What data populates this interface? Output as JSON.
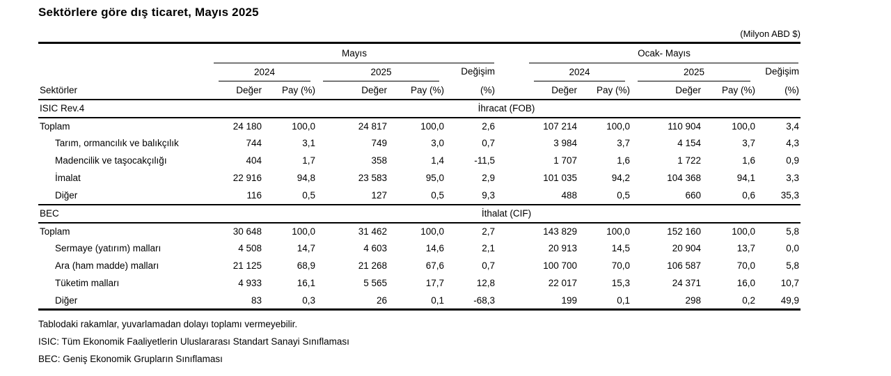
{
  "title": "Sektörlere göre dış ticaret, Mayıs 2025",
  "unit_label": "(Milyon ABD $)",
  "header": {
    "sector_col": "Sektörler",
    "groups": {
      "may": "Mayıs",
      "jan_may": "Ocak- Mayıs"
    },
    "years": [
      "2024",
      "2025"
    ],
    "value_label": "Değer",
    "share_label": "Pay (%)",
    "change_label": "Değişim",
    "change_unit": "(%)"
  },
  "sections": [
    {
      "left_label": "ISIC  Rev.4",
      "center_label": "İhracat (FOB)",
      "rows": [
        {
          "label": "Toplam",
          "bold": true,
          "indent": false,
          "values": [
            "24 180",
            "100,0",
            "24 817",
            "100,0",
            "2,6",
            "107 214",
            "100,0",
            "110 904",
            "100,0",
            "3,4"
          ]
        },
        {
          "label": "Tarım, ormancılık ve balıkçılık",
          "bold": false,
          "indent": true,
          "values": [
            "744",
            "3,1",
            "749",
            "3,0",
            "0,7",
            "3 984",
            "3,7",
            "4 154",
            "3,7",
            "4,3"
          ]
        },
        {
          "label": "Madencilik ve taşocakçılığı",
          "bold": false,
          "indent": true,
          "values": [
            "404",
            "1,7",
            "358",
            "1,4",
            "-11,5",
            "1 707",
            "1,6",
            "1 722",
            "1,6",
            "0,9"
          ]
        },
        {
          "label": "İmalat",
          "bold": false,
          "indent": true,
          "values": [
            "22 916",
            "94,8",
            "23 583",
            "95,0",
            "2,9",
            "101 035",
            "94,2",
            "104 368",
            "94,1",
            "3,3"
          ]
        },
        {
          "label": "Diğer",
          "bold": false,
          "indent": true,
          "values": [
            "116",
            "0,5",
            "127",
            "0,5",
            "9,3",
            "488",
            "0,5",
            "660",
            "0,6",
            "35,3"
          ]
        }
      ]
    },
    {
      "left_label": "BEC",
      "center_label": "İthalat (CIF)",
      "rows": [
        {
          "label": "Toplam",
          "bold": true,
          "indent": false,
          "values": [
            "30 648",
            "100,0",
            "31 462",
            "100,0",
            "2,7",
            "143 829",
            "100,0",
            "152 160",
            "100,0",
            "5,8"
          ]
        },
        {
          "label": "Sermaye (yatırım) malları",
          "bold": false,
          "indent": true,
          "values": [
            "4 508",
            "14,7",
            "4 603",
            "14,6",
            "2,1",
            "20 913",
            "14,5",
            "20 904",
            "13,7",
            "0,0"
          ]
        },
        {
          "label": "Ara (ham madde) malları",
          "bold": false,
          "indent": true,
          "values": [
            "21 125",
            "68,9",
            "21 268",
            "67,6",
            "0,7",
            "100 700",
            "70,0",
            "106 587",
            "70,0",
            "5,8"
          ]
        },
        {
          "label": "Tüketim malları",
          "bold": false,
          "indent": true,
          "values": [
            "4 933",
            "16,1",
            "5 565",
            "17,7",
            "12,8",
            "22 017",
            "15,3",
            "24 371",
            "16,0",
            "10,7"
          ]
        },
        {
          "label": "Diğer",
          "bold": false,
          "indent": true,
          "values": [
            "83",
            "0,3",
            "26",
            "0,1",
            "-68,3",
            "199",
            "0,1",
            "298",
            "0,2",
            "49,9"
          ]
        }
      ]
    }
  ],
  "footnotes": [
    "Tablodaki rakamlar, yuvarlamadan dolayı toplamı vermeyebilir.",
    "ISIC: Tüm Ekonomik Faaliyetlerin Uluslararası Standart Sanayi Sınıflaması",
    "BEC: Geniş Ekonomik Grupların Sınıflaması"
  ]
}
